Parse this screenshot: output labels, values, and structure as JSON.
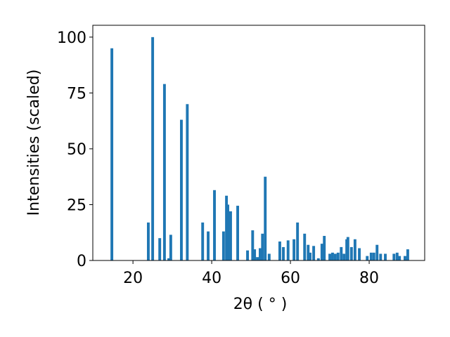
{
  "chart_data": {
    "type": "bar",
    "xlabel": "2θ ( ° )",
    "ylabel": "Intensities (scaled)",
    "color": "#1f77b4",
    "x": [
      14.64,
      23.9,
      25.0,
      26.8,
      28.0,
      29.1,
      29.6,
      32.3,
      33.8,
      37.7,
      39.1,
      40.7,
      43.0,
      43.75,
      44.1,
      44.8,
      46.6,
      49.1,
      50.4,
      50.9,
      51.6,
      52.3,
      52.9,
      53.6,
      54.6,
      57.3,
      58.2,
      59.4,
      60.9,
      61.8,
      63.6,
      64.5,
      65.0,
      65.9,
      67.1,
      68.0,
      68.6,
      70.0,
      70.7,
      71.4,
      72.1,
      72.9,
      73.6,
      74.3,
      74.6,
      75.5,
      76.4,
      77.5,
      79.5,
      80.5,
      81.2,
      82.0,
      82.9,
      84.1,
      86.3,
      87.1,
      87.7,
      89.1,
      89.8
    ],
    "values": [
      95,
      17,
      100,
      10,
      79,
      1,
      11.5,
      63,
      70,
      17,
      13,
      31.5,
      13,
      29,
      25,
      22,
      24.5,
      4.5,
      13.5,
      5,
      1.5,
      5.5,
      12,
      37.5,
      3,
      8.5,
      6,
      9,
      9.5,
      17,
      12,
      7,
      3.5,
      6.5,
      1,
      7.5,
      11,
      3,
      3.5,
      3,
      3.5,
      6,
      3,
      9.5,
      10.5,
      6,
      9.5,
      5.5,
      2,
      3.5,
      3.5,
      7,
      3,
      3,
      3,
      3.5,
      2,
      2,
      5
    ],
    "xlim": [
      9.8,
      94.1
    ],
    "xticks": [
      20,
      40,
      60,
      80
    ],
    "ylim": [
      0,
      105.3
    ],
    "yticks": [
      0,
      25,
      50,
      75,
      100
    ]
  }
}
